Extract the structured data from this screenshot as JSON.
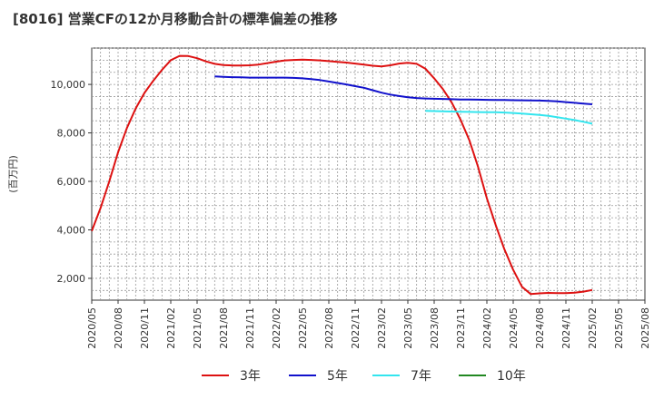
{
  "chart_data": {
    "type": "line",
    "title": "[8016]  営業CFの12か月移動合計の標準偏差の推移",
    "ylabel": "(百万円)",
    "xlabel": "",
    "ylim": [
      1100,
      11500
    ],
    "yticks": [
      2000,
      4000,
      6000,
      8000,
      10000
    ],
    "ytick_labels": [
      "2,000",
      "4,000",
      "6,000",
      "8,000",
      "10,000"
    ],
    "xticks": [
      "2020/05",
      "2020/08",
      "2020/11",
      "2021/02",
      "2021/05",
      "2021/08",
      "2021/11",
      "2022/02",
      "2022/05",
      "2022/08",
      "2022/11",
      "2023/02",
      "2023/05",
      "2023/08",
      "2023/11",
      "2024/02",
      "2024/05",
      "2024/08",
      "2024/11",
      "2025/02",
      "2025/05",
      "2025/08"
    ],
    "grid": true,
    "legend_position": "bottom",
    "series": [
      {
        "name": "3年",
        "color": "#dd1111",
        "x": [
          "2020/05",
          "2020/06",
          "2020/07",
          "2020/08",
          "2020/09",
          "2020/10",
          "2020/11",
          "2020/12",
          "2021/01",
          "2021/02",
          "2021/03",
          "2021/04",
          "2021/05",
          "2021/06",
          "2021/07",
          "2021/08",
          "2021/09",
          "2021/10",
          "2021/11",
          "2021/12",
          "2022/01",
          "2022/02",
          "2022/03",
          "2022/04",
          "2022/05",
          "2022/06",
          "2022/07",
          "2022/08",
          "2022/09",
          "2022/10",
          "2022/11",
          "2022/12",
          "2023/01",
          "2023/02",
          "2023/03",
          "2023/04",
          "2023/05",
          "2023/06",
          "2023/07",
          "2023/08",
          "2023/09",
          "2023/10",
          "2023/11",
          "2023/12",
          "2024/01",
          "2024/02",
          "2024/03",
          "2024/04",
          "2024/05",
          "2024/06",
          "2024/07",
          "2024/08",
          "2024/09",
          "2024/10",
          "2024/11",
          "2024/12",
          "2025/01",
          "2025/02"
        ],
        "values": [
          3950,
          4900,
          6000,
          7200,
          8200,
          9000,
          9650,
          10150,
          10600,
          11000,
          11180,
          11170,
          11080,
          10950,
          10850,
          10800,
          10780,
          10780,
          10790,
          10820,
          10880,
          10940,
          10990,
          11010,
          11020,
          11010,
          10990,
          10960,
          10930,
          10900,
          10860,
          10820,
          10770,
          10740,
          10790,
          10860,
          10890,
          10850,
          10650,
          10250,
          9800,
          9250,
          8550,
          7700,
          6600,
          5300,
          4200,
          3200,
          2350,
          1650,
          1350,
          1380,
          1400,
          1390,
          1390,
          1410,
          1450,
          1520
        ]
      },
      {
        "name": "5年",
        "color": "#1111cc",
        "x": [
          "2021/07",
          "2021/08",
          "2021/09",
          "2021/10",
          "2021/11",
          "2021/12",
          "2022/01",
          "2022/02",
          "2022/03",
          "2022/04",
          "2022/05",
          "2022/06",
          "2022/07",
          "2022/08",
          "2022/09",
          "2022/10",
          "2022/11",
          "2022/12",
          "2023/01",
          "2023/02",
          "2023/03",
          "2023/04",
          "2023/05",
          "2023/06",
          "2023/07",
          "2023/08",
          "2023/09",
          "2023/10",
          "2023/11",
          "2023/12",
          "2024/01",
          "2024/02",
          "2024/03",
          "2024/04",
          "2024/05",
          "2024/06",
          "2024/07",
          "2024/08",
          "2024/09",
          "2024/10",
          "2024/11",
          "2024/12",
          "2025/01",
          "2025/02"
        ],
        "values": [
          10330,
          10310,
          10300,
          10290,
          10280,
          10280,
          10280,
          10280,
          10280,
          10270,
          10250,
          10220,
          10180,
          10120,
          10060,
          10000,
          9930,
          9860,
          9760,
          9660,
          9580,
          9520,
          9470,
          9440,
          9420,
          9410,
          9400,
          9390,
          9380,
          9375,
          9370,
          9365,
          9360,
          9355,
          9350,
          9345,
          9340,
          9335,
          9320,
          9300,
          9270,
          9240,
          9210,
          9180
        ]
      },
      {
        "name": "7年",
        "color": "#33e5ee",
        "x": [
          "2023/07",
          "2023/08",
          "2023/09",
          "2023/10",
          "2023/11",
          "2023/12",
          "2024/01",
          "2024/02",
          "2024/03",
          "2024/04",
          "2024/05",
          "2024/06",
          "2024/07",
          "2024/08",
          "2024/09",
          "2024/10",
          "2024/11",
          "2024/12",
          "2025/01",
          "2025/02"
        ],
        "values": [
          8910,
          8900,
          8890,
          8880,
          8870,
          8865,
          8860,
          8855,
          8850,
          8840,
          8820,
          8800,
          8770,
          8740,
          8700,
          8650,
          8590,
          8530,
          8460,
          8380
        ]
      },
      {
        "name": "10年",
        "color": "#228822",
        "x": [],
        "values": []
      }
    ]
  }
}
